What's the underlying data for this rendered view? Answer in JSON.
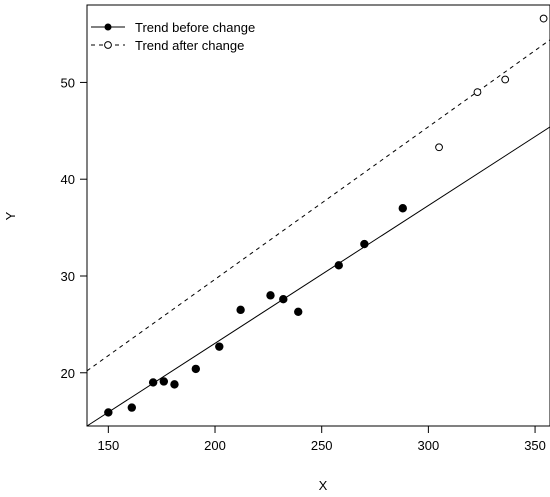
{
  "chart_data": {
    "type": "scatter",
    "xlabel": "X",
    "ylabel": "Y",
    "xlim": [
      140,
      357
    ],
    "ylim": [
      14.5,
      58
    ],
    "x_ticks": [
      150,
      200,
      250,
      300,
      350
    ],
    "y_ticks": [
      20,
      30,
      40,
      50
    ],
    "grid": false,
    "legend_position": "top-left",
    "series": [
      {
        "name": "Trend before change",
        "marker": "filled-circle",
        "line_style": "solid",
        "color": "#000000",
        "points": [
          {
            "x": 150,
            "y": 15.9
          },
          {
            "x": 161,
            "y": 16.4
          },
          {
            "x": 171,
            "y": 19.0
          },
          {
            "x": 176,
            "y": 19.1
          },
          {
            "x": 181,
            "y": 18.8
          },
          {
            "x": 191,
            "y": 20.4
          },
          {
            "x": 202,
            "y": 22.7
          },
          {
            "x": 212,
            "y": 26.5
          },
          {
            "x": 226,
            "y": 28.0
          },
          {
            "x": 232,
            "y": 27.6
          },
          {
            "x": 239,
            "y": 26.3
          },
          {
            "x": 258,
            "y": 31.1
          },
          {
            "x": 270,
            "y": 33.3
          },
          {
            "x": 288,
            "y": 37.0
          }
        ],
        "trend_line": {
          "x": [
            140,
            357
          ],
          "y": [
            14.5,
            45.4
          ]
        }
      },
      {
        "name": "Trend after change",
        "marker": "open-circle",
        "line_style": "dashed",
        "color": "#000000",
        "points": [
          {
            "x": 305,
            "y": 43.3
          },
          {
            "x": 323,
            "y": 49.0
          },
          {
            "x": 336,
            "y": 50.3
          },
          {
            "x": 354,
            "y": 56.6
          }
        ],
        "trend_line": {
          "x": [
            140,
            357
          ],
          "y": [
            20.2,
            54.4
          ]
        }
      }
    ]
  }
}
